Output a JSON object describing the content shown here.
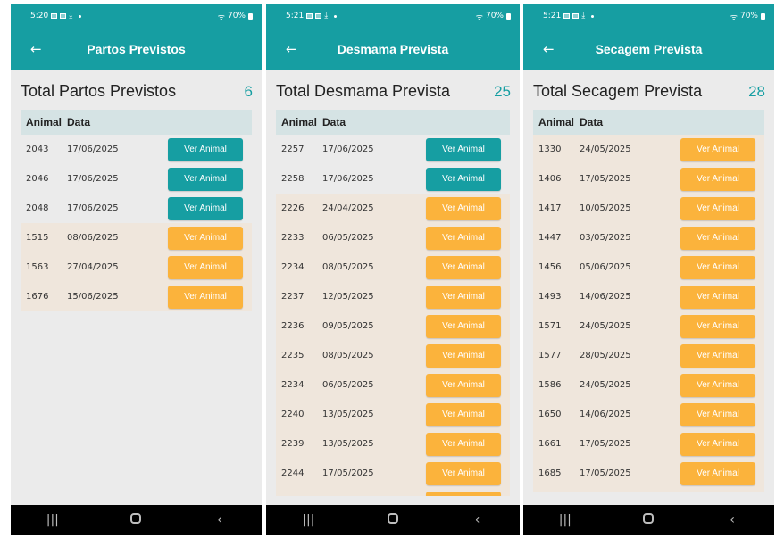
{
  "screens": [
    {
      "status": {
        "time": "5:20",
        "battery": "70%"
      },
      "title": "Partos Previstos",
      "summary_label": "Total Partos Previstos",
      "summary_count": "6",
      "headers": {
        "animal": "Animal",
        "date": "Data"
      },
      "rows": [
        {
          "animal": "2043",
          "date": "17/06/2025",
          "button": "Ver Animal",
          "color": "teal"
        },
        {
          "animal": "2046",
          "date": "17/06/2025",
          "button": "Ver Animal",
          "color": "teal"
        },
        {
          "animal": "2048",
          "date": "17/06/2025",
          "button": "Ver Animal",
          "color": "teal"
        },
        {
          "animal": "1515",
          "date": "08/06/2025",
          "button": "Ver Animal",
          "color": "orange"
        },
        {
          "animal": "1563",
          "date": "27/04/2025",
          "button": "Ver Animal",
          "color": "orange"
        },
        {
          "animal": "1676",
          "date": "15/06/2025",
          "button": "Ver Animal",
          "color": "orange"
        }
      ]
    },
    {
      "status": {
        "time": "5:21",
        "battery": "70%"
      },
      "title": "Desmama Prevista",
      "summary_label": "Total Desmama Prevista",
      "summary_count": "25",
      "headers": {
        "animal": "Animal",
        "date": "Data"
      },
      "rows": [
        {
          "animal": "2257",
          "date": "17/06/2025",
          "button": "Ver Animal",
          "color": "teal"
        },
        {
          "animal": "2258",
          "date": "17/06/2025",
          "button": "Ver Animal",
          "color": "teal"
        },
        {
          "animal": "2226",
          "date": "24/04/2025",
          "button": "Ver Animal",
          "color": "orange"
        },
        {
          "animal": "2233",
          "date": "06/05/2025",
          "button": "Ver Animal",
          "color": "orange"
        },
        {
          "animal": "2234",
          "date": "08/05/2025",
          "button": "Ver Animal",
          "color": "orange"
        },
        {
          "animal": "2237",
          "date": "12/05/2025",
          "button": "Ver Animal",
          "color": "orange"
        },
        {
          "animal": "2236",
          "date": "09/05/2025",
          "button": "Ver Animal",
          "color": "orange"
        },
        {
          "animal": "2235",
          "date": "08/05/2025",
          "button": "Ver Animal",
          "color": "orange"
        },
        {
          "animal": "2234",
          "date": "06/05/2025",
          "button": "Ver Animal",
          "color": "orange"
        },
        {
          "animal": "2240",
          "date": "13/05/2025",
          "button": "Ver Animal",
          "color": "orange"
        },
        {
          "animal": "2239",
          "date": "13/05/2025",
          "button": "Ver Animal",
          "color": "orange"
        },
        {
          "animal": "2244",
          "date": "17/05/2025",
          "button": "Ver Animal",
          "color": "orange"
        }
      ]
    },
    {
      "status": {
        "time": "5:21",
        "battery": "70%"
      },
      "title": "Secagem Prevista",
      "summary_label": "Total Secagem Prevista",
      "summary_count": "28",
      "headers": {
        "animal": "Animal",
        "date": "Data"
      },
      "rows": [
        {
          "animal": "1330",
          "date": "24/05/2025",
          "button": "Ver Animal",
          "color": "orange"
        },
        {
          "animal": "1406",
          "date": "17/05/2025",
          "button": "Ver Animal",
          "color": "orange"
        },
        {
          "animal": "1417",
          "date": "10/05/2025",
          "button": "Ver Animal",
          "color": "orange"
        },
        {
          "animal": "1447",
          "date": "03/05/2025",
          "button": "Ver Animal",
          "color": "orange"
        },
        {
          "animal": "1456",
          "date": "05/06/2025",
          "button": "Ver Animal",
          "color": "orange"
        },
        {
          "animal": "1493",
          "date": "14/06/2025",
          "button": "Ver Animal",
          "color": "orange"
        },
        {
          "animal": "1571",
          "date": "24/05/2025",
          "button": "Ver Animal",
          "color": "orange"
        },
        {
          "animal": "1577",
          "date": "28/05/2025",
          "button": "Ver Animal",
          "color": "orange"
        },
        {
          "animal": "1586",
          "date": "24/05/2025",
          "button": "Ver Animal",
          "color": "orange"
        },
        {
          "animal": "1650",
          "date": "14/06/2025",
          "button": "Ver Animal",
          "color": "orange"
        },
        {
          "animal": "1661",
          "date": "17/05/2025",
          "button": "Ver Animal",
          "color": "orange"
        },
        {
          "animal": "1685",
          "date": "17/05/2025",
          "button": "Ver Animal",
          "color": "orange"
        }
      ]
    }
  ],
  "icons": {
    "back": "arrow-left-icon",
    "nav_recents": "recents-icon",
    "nav_home": "home-icon",
    "nav_back": "nav-back-icon"
  },
  "colors": {
    "teal": "#169ea2",
    "orange": "#fbb33c",
    "orange_row": "#efe6dc",
    "header_row": "#d5e3e4"
  }
}
